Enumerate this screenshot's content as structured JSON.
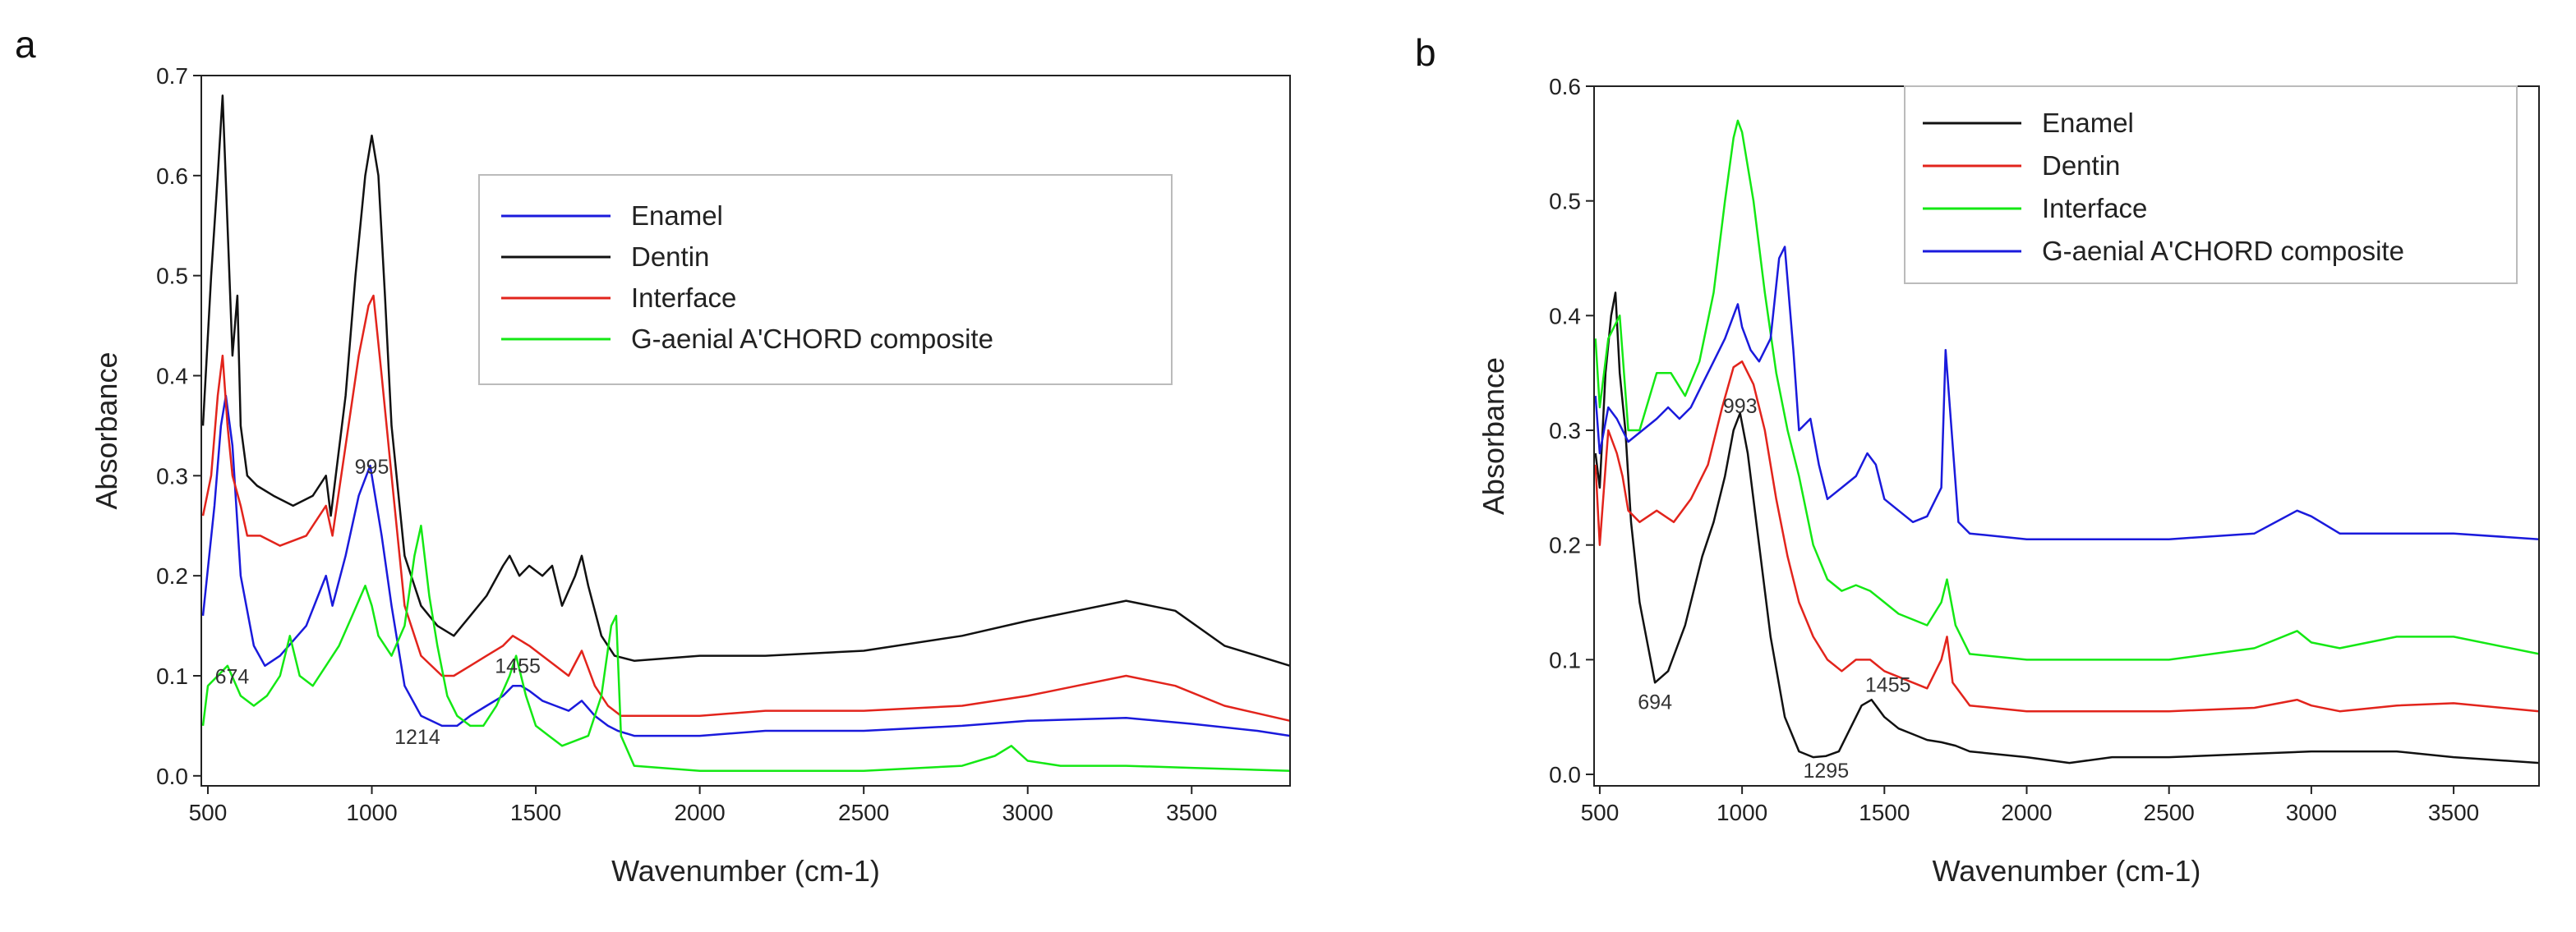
{
  "chart_data": [
    {
      "type": "line",
      "panel": "a",
      "title": "",
      "xlabel": "Wavenumber (cm-1)",
      "ylabel": "Absorbance",
      "xlim": [
        480,
        3800
      ],
      "ylim": [
        -0.01,
        0.7
      ],
      "xticks": [
        500,
        1000,
        1500,
        2000,
        2500,
        3000,
        3500
      ],
      "yticks": [
        0.0,
        0.1,
        0.2,
        0.3,
        0.4,
        0.5,
        0.6,
        0.7
      ],
      "xtick_labels": [
        "500",
        "1000",
        "1500",
        "2000",
        "2500",
        "3000",
        "3500"
      ],
      "ytick_labels": [
        "0.0",
        "0.1",
        "0.2",
        "0.3",
        "0.4",
        "0.5",
        "0.6",
        "0.7"
      ],
      "legend_position": "upper-center",
      "series": [
        {
          "name": "Enamel",
          "color": "#1a1adc",
          "x": [
            485,
            520,
            540,
            555,
            575,
            600,
            640,
            674,
            720,
            800,
            860,
            880,
            920,
            960,
            995,
            1030,
            1060,
            1100,
            1150,
            1214,
            1260,
            1300,
            1350,
            1400,
            1430,
            1455,
            1480,
            1520,
            1560,
            1600,
            1640,
            1680,
            1720,
            1750,
            1800,
            2000,
            2200,
            2500,
            2800,
            3000,
            3300,
            3500,
            3700,
            3800
          ],
          "y": [
            0.16,
            0.27,
            0.35,
            0.38,
            0.33,
            0.2,
            0.13,
            0.11,
            0.12,
            0.15,
            0.2,
            0.17,
            0.22,
            0.28,
            0.31,
            0.24,
            0.17,
            0.09,
            0.06,
            0.05,
            0.05,
            0.06,
            0.07,
            0.08,
            0.09,
            0.09,
            0.085,
            0.075,
            0.07,
            0.065,
            0.075,
            0.06,
            0.05,
            0.045,
            0.04,
            0.04,
            0.045,
            0.045,
            0.05,
            0.055,
            0.058,
            0.052,
            0.045,
            0.04
          ]
        },
        {
          "name": "Dentin",
          "color": "#111111",
          "x": [
            485,
            510,
            530,
            545,
            560,
            575,
            590,
            600,
            620,
            650,
            700,
            760,
            820,
            860,
            875,
            890,
            920,
            950,
            980,
            1000,
            1020,
            1040,
            1060,
            1100,
            1150,
            1200,
            1250,
            1300,
            1350,
            1400,
            1420,
            1450,
            1480,
            1520,
            1550,
            1580,
            1620,
            1640,
            1660,
            1700,
            1740,
            1800,
            2000,
            2200,
            2500,
            2800,
            3000,
            3150,
            3300,
            3450,
            3600,
            3800
          ],
          "y": [
            0.35,
            0.5,
            0.6,
            0.68,
            0.55,
            0.42,
            0.48,
            0.35,
            0.3,
            0.29,
            0.28,
            0.27,
            0.28,
            0.3,
            0.26,
            0.3,
            0.38,
            0.5,
            0.6,
            0.64,
            0.6,
            0.48,
            0.35,
            0.22,
            0.17,
            0.15,
            0.14,
            0.16,
            0.18,
            0.21,
            0.22,
            0.2,
            0.21,
            0.2,
            0.21,
            0.17,
            0.2,
            0.22,
            0.19,
            0.14,
            0.12,
            0.115,
            0.12,
            0.12,
            0.125,
            0.14,
            0.155,
            0.165,
            0.175,
            0.165,
            0.13,
            0.11
          ]
        },
        {
          "name": "Interface",
          "color": "#e2241c",
          "x": [
            485,
            510,
            530,
            545,
            560,
            575,
            600,
            620,
            660,
            720,
            800,
            860,
            880,
            920,
            960,
            990,
            1005,
            1030,
            1060,
            1100,
            1150,
            1214,
            1250,
            1300,
            1350,
            1400,
            1430,
            1455,
            1480,
            1520,
            1560,
            1600,
            1640,
            1680,
            1720,
            1760,
            1800,
            2000,
            2200,
            2500,
            2800,
            3000,
            3150,
            3300,
            3450,
            3600,
            3800
          ],
          "y": [
            0.26,
            0.3,
            0.38,
            0.42,
            0.35,
            0.3,
            0.27,
            0.24,
            0.24,
            0.23,
            0.24,
            0.27,
            0.24,
            0.33,
            0.42,
            0.47,
            0.48,
            0.4,
            0.3,
            0.17,
            0.12,
            0.1,
            0.1,
            0.11,
            0.12,
            0.13,
            0.14,
            0.135,
            0.13,
            0.12,
            0.11,
            0.1,
            0.125,
            0.09,
            0.07,
            0.06,
            0.06,
            0.06,
            0.065,
            0.065,
            0.07,
            0.08,
            0.09,
            0.1,
            0.09,
            0.07,
            0.055
          ]
        },
        {
          "name": "G-aenial A'CHORD composite",
          "color": "#14e814",
          "x": [
            485,
            500,
            530,
            560,
            600,
            640,
            680,
            720,
            750,
            780,
            820,
            860,
            900,
            940,
            980,
            1000,
            1020,
            1060,
            1100,
            1130,
            1150,
            1175,
            1200,
            1230,
            1260,
            1300,
            1340,
            1380,
            1420,
            1440,
            1470,
            1500,
            1540,
            1580,
            1620,
            1660,
            1700,
            1730,
            1745,
            1760,
            1800,
            2000,
            2500,
            2800,
            2900,
            2950,
            3000,
            3100,
            3300,
            3500,
            3800
          ],
          "y": [
            0.05,
            0.09,
            0.1,
            0.11,
            0.08,
            0.07,
            0.08,
            0.1,
            0.14,
            0.1,
            0.09,
            0.11,
            0.13,
            0.16,
            0.19,
            0.17,
            0.14,
            0.12,
            0.15,
            0.22,
            0.25,
            0.18,
            0.13,
            0.08,
            0.06,
            0.05,
            0.05,
            0.07,
            0.1,
            0.12,
            0.08,
            0.05,
            0.04,
            0.03,
            0.035,
            0.04,
            0.08,
            0.15,
            0.16,
            0.04,
            0.01,
            0.005,
            0.005,
            0.01,
            0.02,
            0.03,
            0.015,
            0.01,
            0.01,
            0.008,
            0.005
          ]
        }
      ],
      "annotations": [
        {
          "text": "995",
          "x": 1000,
          "y": 0.302
        },
        {
          "text": "674",
          "x": 674,
          "y": 0.092
        },
        {
          "text": "1455",
          "x": 1470,
          "y": 0.103
        },
        {
          "text": "1214",
          "x": 1214,
          "y": 0.032
        }
      ]
    },
    {
      "type": "line",
      "panel": "b",
      "title": "",
      "xlabel": "Wavenumber (cm-1)",
      "ylabel": "Absorbance",
      "xlim": [
        480,
        3800
      ],
      "ylim": [
        -0.01,
        0.6
      ],
      "xticks": [
        500,
        1000,
        1500,
        2000,
        2500,
        3000,
        3500
      ],
      "yticks": [
        0.0,
        0.1,
        0.2,
        0.3,
        0.4,
        0.5,
        0.6
      ],
      "xtick_labels": [
        "500",
        "1000",
        "1500",
        "2000",
        "2500",
        "3000",
        "3500"
      ],
      "ytick_labels": [
        "0.0",
        "0.1",
        "0.2",
        "0.3",
        "0.4",
        "0.5",
        "0.6"
      ],
      "legend_position": "upper-right",
      "series": [
        {
          "name": "Enamel",
          "color": "#111111",
          "x": [
            485,
            500,
            520,
            540,
            555,
            570,
            590,
            610,
            640,
            694,
            740,
            800,
            860,
            900,
            940,
            970,
            993,
            1020,
            1050,
            1100,
            1150,
            1200,
            1250,
            1295,
            1340,
            1380,
            1420,
            1455,
            1500,
            1550,
            1600,
            1650,
            1700,
            1750,
            1800,
            2000,
            2150,
            2300,
            2500,
            2800,
            3000,
            3300,
            3500,
            3800
          ],
          "y": [
            0.28,
            0.25,
            0.35,
            0.4,
            0.42,
            0.35,
            0.3,
            0.22,
            0.15,
            0.08,
            0.09,
            0.13,
            0.19,
            0.22,
            0.26,
            0.3,
            0.315,
            0.28,
            0.22,
            0.12,
            0.05,
            0.02,
            0.015,
            0.016,
            0.02,
            0.04,
            0.06,
            0.065,
            0.05,
            0.04,
            0.035,
            0.03,
            0.028,
            0.025,
            0.02,
            0.015,
            0.01,
            0.015,
            0.015,
            0.018,
            0.02,
            0.02,
            0.015,
            0.01
          ]
        },
        {
          "name": "Dentin",
          "color": "#e2241c",
          "x": [
            485,
            500,
            530,
            560,
            580,
            600,
            640,
            700,
            760,
            820,
            880,
            930,
            970,
            1000,
            1040,
            1080,
            1120,
            1160,
            1200,
            1250,
            1300,
            1350,
            1400,
            1450,
            1500,
            1550,
            1600,
            1650,
            1700,
            1720,
            1740,
            1800,
            2000,
            2200,
            2500,
            2800,
            2950,
            3000,
            3100,
            3300,
            3500,
            3800
          ],
          "y": [
            0.27,
            0.2,
            0.3,
            0.28,
            0.26,
            0.23,
            0.22,
            0.23,
            0.22,
            0.24,
            0.27,
            0.32,
            0.355,
            0.36,
            0.34,
            0.3,
            0.24,
            0.19,
            0.15,
            0.12,
            0.1,
            0.09,
            0.1,
            0.1,
            0.09,
            0.085,
            0.08,
            0.075,
            0.1,
            0.12,
            0.08,
            0.06,
            0.055,
            0.055,
            0.055,
            0.058,
            0.065,
            0.06,
            0.055,
            0.06,
            0.062,
            0.055
          ]
        },
        {
          "name": "Interface",
          "color": "#14e814",
          "x": [
            485,
            500,
            530,
            570,
            600,
            640,
            700,
            750,
            800,
            850,
            900,
            940,
            970,
            985,
            1000,
            1040,
            1080,
            1120,
            1160,
            1200,
            1250,
            1300,
            1350,
            1400,
            1450,
            1500,
            1550,
            1600,
            1650,
            1700,
            1720,
            1750,
            1800,
            2000,
            2200,
            2500,
            2800,
            2950,
            3000,
            3100,
            3300,
            3500,
            3800
          ],
          "y": [
            0.38,
            0.32,
            0.38,
            0.4,
            0.3,
            0.3,
            0.35,
            0.35,
            0.33,
            0.36,
            0.42,
            0.5,
            0.555,
            0.57,
            0.56,
            0.5,
            0.42,
            0.35,
            0.3,
            0.26,
            0.2,
            0.17,
            0.16,
            0.165,
            0.16,
            0.15,
            0.14,
            0.135,
            0.13,
            0.15,
            0.17,
            0.13,
            0.105,
            0.1,
            0.1,
            0.1,
            0.11,
            0.125,
            0.115,
            0.11,
            0.12,
            0.12,
            0.105
          ]
        },
        {
          "name": "G-aenial A'CHORD composite",
          "color": "#1a1adc",
          "x": [
            485,
            500,
            530,
            560,
            600,
            650,
            700,
            740,
            780,
            820,
            860,
            900,
            940,
            970,
            985,
            1000,
            1030,
            1060,
            1100,
            1130,
            1150,
            1180,
            1200,
            1240,
            1270,
            1300,
            1350,
            1400,
            1440,
            1470,
            1500,
            1550,
            1600,
            1650,
            1700,
            1715,
            1730,
            1760,
            1800,
            2000,
            2200,
            2500,
            2800,
            2950,
            3000,
            3100,
            3300,
            3500,
            3800
          ],
          "y": [
            0.33,
            0.28,
            0.32,
            0.31,
            0.29,
            0.3,
            0.31,
            0.32,
            0.31,
            0.32,
            0.34,
            0.36,
            0.38,
            0.4,
            0.41,
            0.39,
            0.37,
            0.36,
            0.38,
            0.45,
            0.46,
            0.37,
            0.3,
            0.31,
            0.27,
            0.24,
            0.25,
            0.26,
            0.28,
            0.27,
            0.24,
            0.23,
            0.22,
            0.225,
            0.25,
            0.37,
            0.32,
            0.22,
            0.21,
            0.205,
            0.205,
            0.205,
            0.21,
            0.23,
            0.225,
            0.21,
            0.21,
            0.21,
            0.205
          ]
        }
      ],
      "annotations": [
        {
          "text": "993",
          "x": 993,
          "y": 0.315
        },
        {
          "text": "694",
          "x": 694,
          "y": 0.057
        },
        {
          "text": "1455",
          "x": 1455,
          "y": 0.072
        },
        {
          "text": "1295",
          "x": 1295,
          "y": -0.003
        }
      ]
    }
  ]
}
